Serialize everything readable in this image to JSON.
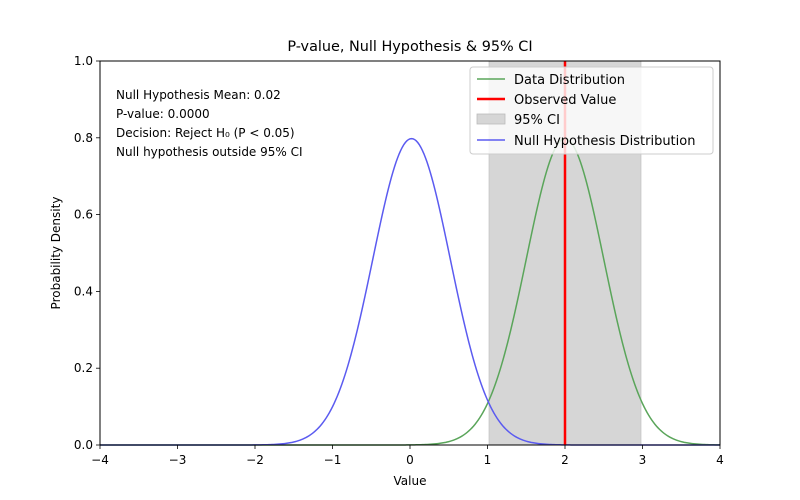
{
  "chart_data": {
    "type": "line",
    "title": "P-value, Null Hypothesis & 95% CI",
    "xlabel": "Value",
    "ylabel": "Probability Density",
    "xlim": [
      -4,
      4
    ],
    "ylim": [
      0,
      1.0
    ],
    "x_ticks": [
      "−4",
      "−3",
      "−2",
      "−1",
      "0",
      "1",
      "2",
      "3",
      "4"
    ],
    "y_ticks": [
      "0.0",
      "0.2",
      "0.4",
      "0.6",
      "0.8",
      "1.0"
    ],
    "grid": false,
    "legend_position": "top-right",
    "series": [
      {
        "name": "Data Distribution",
        "kind": "normal-curve",
        "mean": 2.0,
        "sd": 0.5,
        "color": "#5aa55a"
      },
      {
        "name": "Null Hypothesis Distribution",
        "kind": "normal-curve",
        "mean": 0.02,
        "sd": 0.5,
        "color": "#5b5bf0"
      }
    ],
    "observed_value": {
      "name": "Observed Value",
      "x": 2.0,
      "color": "#ff0000"
    },
    "ci": {
      "name": "95% CI",
      "lower": 1.02,
      "upper": 2.98,
      "color": "#d6d6d6"
    },
    "annotations": [
      "Null Hypothesis Mean: 0.02",
      "P-value: 0.0000",
      "Decision: Reject H₀ (P < 0.05)",
      "Null hypothesis outside 95% CI"
    ]
  }
}
